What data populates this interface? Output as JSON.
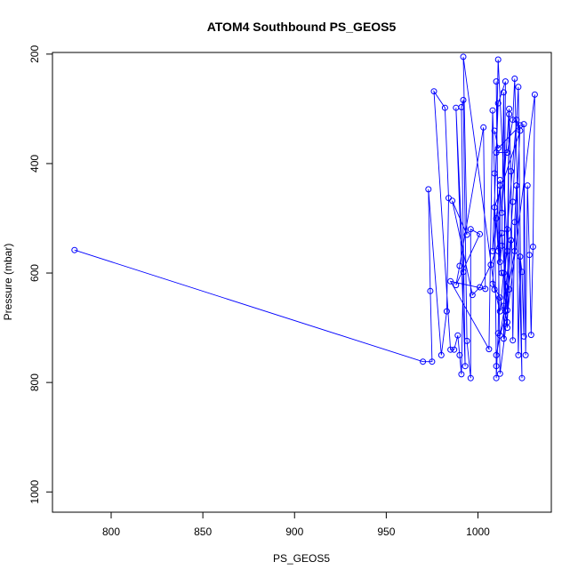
{
  "chart_data": {
    "type": "line",
    "title": "ATOM4 Southbound PS_GEOS5",
    "xlabel": "PS_GEOS5",
    "ylabel": "Pressure (mbar)",
    "xlim": [
      768,
      1040
    ],
    "ylim": [
      1037,
      197
    ],
    "y_inverted": true,
    "x_ticks": [
      800,
      850,
      900,
      950,
      1000
    ],
    "y_ticks": [
      200,
      400,
      600,
      800,
      1000
    ],
    "grid": false,
    "marker": "open-circle",
    "line_color": "#0000ff",
    "series": [
      {
        "values": [
          [
            780,
            558
          ],
          [
            970,
            762
          ],
          [
            975,
            762
          ],
          [
            974,
            633
          ],
          [
            973,
            447
          ],
          [
            980,
            750
          ],
          [
            983,
            670
          ],
          [
            984,
            463
          ],
          [
            982,
            298
          ],
          [
            976,
            268
          ],
          [
            985,
            740
          ],
          [
            987,
            740
          ],
          [
            989,
            714
          ],
          [
            990,
            750
          ],
          [
            991,
            785
          ],
          [
            992,
            598
          ],
          [
            988,
            298
          ],
          [
            993,
            770
          ],
          [
            991,
            297
          ],
          [
            992,
            284
          ],
          [
            994,
            724
          ],
          [
            996,
            792
          ],
          [
            996,
            520
          ],
          [
            1001,
            529
          ],
          [
            988,
            622
          ],
          [
            990,
            587
          ],
          [
            1003,
            334
          ],
          [
            1004,
            629
          ],
          [
            985,
            615
          ],
          [
            1006,
            739
          ],
          [
            1008,
            303
          ],
          [
            1009,
            418
          ],
          [
            1010,
            770
          ],
          [
            1010,
            792
          ],
          [
            1011,
            710
          ],
          [
            1012,
            430
          ],
          [
            1012,
            580
          ],
          [
            1013,
            550
          ],
          [
            1014,
            270
          ],
          [
            1015,
            670
          ],
          [
            1016,
            700
          ],
          [
            1017,
            310
          ],
          [
            1018,
            414
          ],
          [
            1019,
            723
          ],
          [
            1020,
            507
          ],
          [
            1021,
            440
          ],
          [
            1022,
            750
          ],
          [
            1023,
            570
          ],
          [
            1024,
            598
          ],
          [
            1025,
            716
          ],
          [
            1025,
            328
          ],
          [
            1026,
            750
          ],
          [
            1027,
            440
          ],
          [
            1028,
            567
          ],
          [
            1029,
            713
          ],
          [
            1030,
            552
          ],
          [
            1031,
            274
          ],
          [
            1012,
            784
          ],
          [
            1010,
            250
          ],
          [
            1011,
            560
          ],
          [
            1010,
            500
          ],
          [
            1008,
            620
          ],
          [
            1012,
            645
          ],
          [
            1016,
            690
          ],
          [
            1018,
            540
          ],
          [
            1014,
            660
          ],
          [
            1016,
            520
          ],
          [
            1021,
            320
          ],
          [
            1023,
            340
          ],
          [
            1009,
            480
          ],
          [
            1013,
            600
          ],
          [
            1017,
            630
          ],
          [
            1011,
            210
          ],
          [
            1010,
            380
          ],
          [
            1016,
            380
          ],
          [
            1019,
            320
          ],
          [
            1020,
            245
          ],
          [
            1024,
            792
          ],
          [
            1022,
            260
          ],
          [
            1019,
            470
          ],
          [
            1014,
            720
          ],
          [
            1015,
            250
          ],
          [
            1011,
            290
          ],
          [
            1008,
            560
          ],
          [
            1012,
            440
          ],
          [
            1013,
            490
          ],
          [
            1017,
            300
          ],
          [
            1016,
            560
          ],
          [
            1014,
            600
          ],
          [
            1012,
            670
          ],
          [
            1009,
            630
          ],
          [
            992,
            205
          ],
          [
            994,
            530
          ],
          [
            986,
            468
          ],
          [
            997,
            640
          ],
          [
            1001,
            626
          ],
          [
            1007,
            585
          ],
          [
            1013,
            527
          ],
          [
            1016,
            668
          ],
          [
            1012,
            714
          ],
          [
            1010,
            750
          ],
          [
            1020,
            560
          ],
          [
            1023,
            330
          ],
          [
            1011,
            372
          ],
          [
            1009,
            340
          ]
        ]
      }
    ]
  }
}
